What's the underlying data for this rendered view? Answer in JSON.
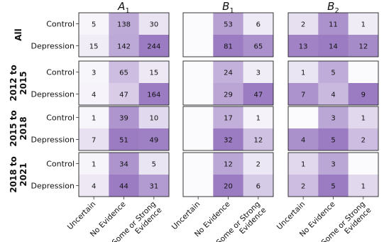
{
  "chart_data": {
    "type": "heatmap",
    "columns": [
      {
        "label": "A",
        "sub": "1"
      },
      {
        "label": "B",
        "sub": "1"
      },
      {
        "label": "B",
        "sub": "2"
      }
    ],
    "x_categories": [
      "Uncertain",
      "No Evidence",
      "Some or Strong Evidence"
    ],
    "x_tick_lines": [
      [
        "Uncertain"
      ],
      [
        "No Evidence"
      ],
      [
        "Some or Strong",
        "Evidence"
      ]
    ],
    "y_categories": [
      "Control",
      "Depression"
    ],
    "rows": [
      {
        "label": "All",
        "label_lines": [
          "All"
        ]
      },
      {
        "label": "2012 to 2015",
        "label_lines": [
          "2012 to",
          "2015"
        ]
      },
      {
        "label": "2015 to 2018",
        "label_lines": [
          "2015 to",
          "2018"
        ]
      },
      {
        "label": "2018 to 2021",
        "label_lines": [
          "2018 to",
          "2021"
        ]
      }
    ],
    "colormap": {
      "low": "#fbfbfd",
      "high": "#9b7cc2"
    },
    "values": [
      [
        [
          [
            5,
            138,
            30
          ],
          [
            15,
            142,
            244
          ]
        ],
        [
          [
            null,
            53,
            6
          ],
          [
            null,
            81,
            65
          ]
        ],
        [
          [
            2,
            11,
            1
          ],
          [
            13,
            14,
            12
          ]
        ]
      ],
      [
        [
          [
            3,
            65,
            15
          ],
          [
            4,
            47,
            164
          ]
        ],
        [
          [
            null,
            24,
            3
          ],
          [
            null,
            29,
            47
          ]
        ],
        [
          [
            1,
            5,
            null
          ],
          [
            7,
            4,
            9
          ]
        ]
      ],
      [
        [
          [
            1,
            39,
            10
          ],
          [
            7,
            51,
            49
          ]
        ],
        [
          [
            null,
            17,
            1
          ],
          [
            null,
            32,
            12
          ]
        ],
        [
          [
            null,
            3,
            1
          ],
          [
            4,
            5,
            2
          ]
        ]
      ],
      [
        [
          [
            1,
            34,
            5
          ],
          [
            4,
            44,
            31
          ]
        ],
        [
          [
            null,
            12,
            2
          ],
          [
            null,
            20,
            6
          ]
        ],
        [
          [
            1,
            3,
            null
          ],
          [
            2,
            5,
            1
          ]
        ]
      ]
    ]
  }
}
